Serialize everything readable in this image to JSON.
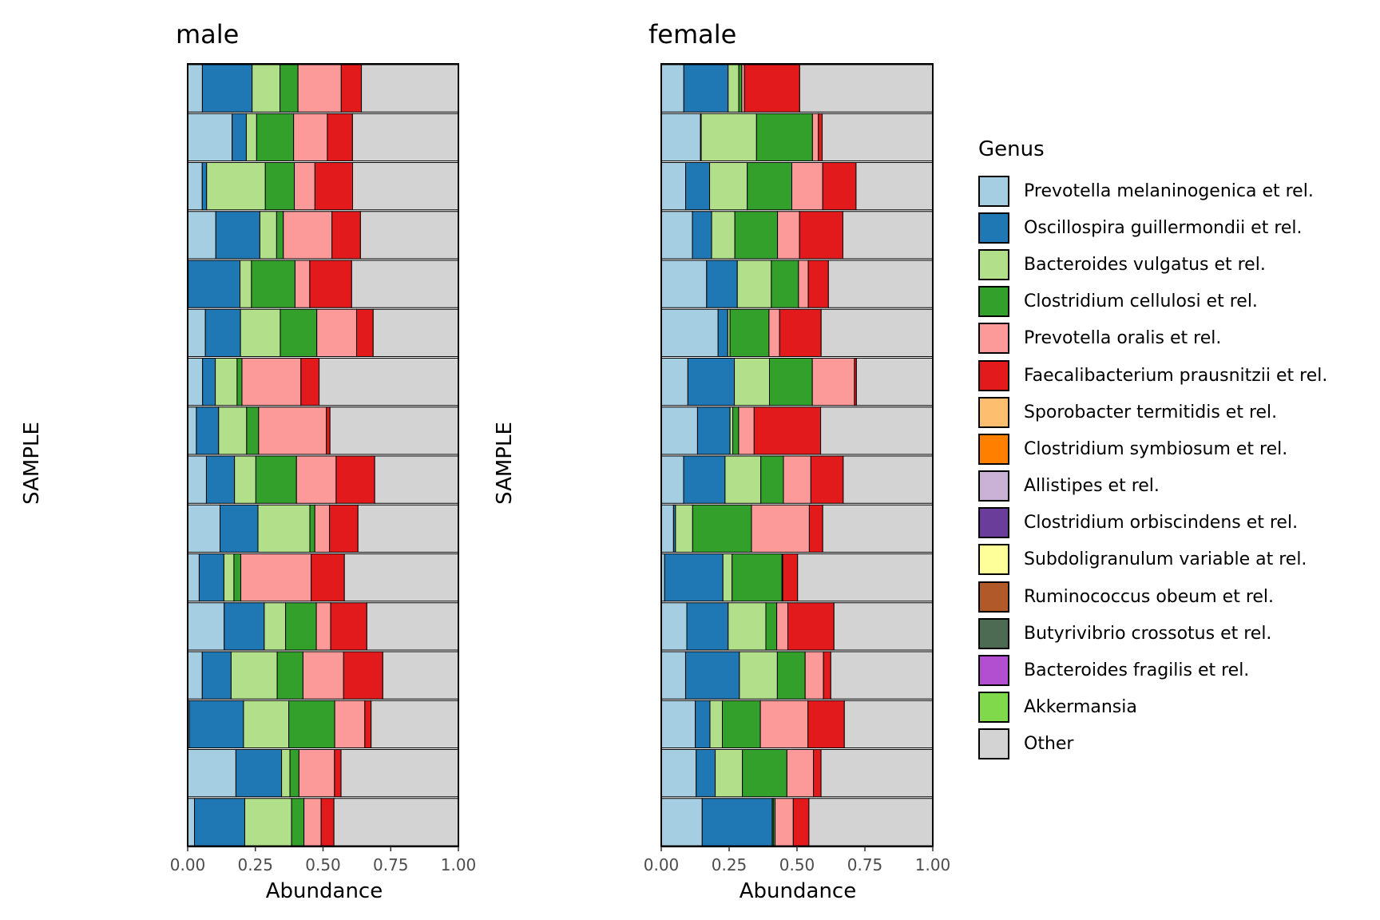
{
  "chart_data": {
    "type": "bar",
    "orientation": "horizontal",
    "stacked": true,
    "xlabel": "Abundance",
    "ylabel": "SAMPLE",
    "x_ticks": [
      "0.00",
      "0.25",
      "0.50",
      "0.75",
      "1.00"
    ],
    "xlim": [
      0,
      1
    ],
    "legend_title": "Genus",
    "legend_position": "right",
    "grid": false,
    "panels": [
      {
        "title": "male"
      },
      {
        "title": "female"
      }
    ],
    "series": [
      {
        "name": "Prevotella melaninogenica et rel.",
        "color": "#A6CEE3"
      },
      {
        "name": "Oscillospira guillermondii et rel.",
        "color": "#1F78B4"
      },
      {
        "name": "Bacteroides vulgatus et rel.",
        "color": "#B2DF8A"
      },
      {
        "name": "Clostridium cellulosi et rel.",
        "color": "#33A02C"
      },
      {
        "name": "Prevotella oralis et rel.",
        "color": "#FB9A99"
      },
      {
        "name": "Faecalibacterium prausnitzii et rel.",
        "color": "#E31A1C"
      },
      {
        "name": "Sporobacter termitidis et rel.",
        "color": "#FDBF6F"
      },
      {
        "name": "Clostridium symbiosum et rel.",
        "color": "#FF7F00"
      },
      {
        "name": "Allistipes et rel.",
        "color": "#CAB2D6"
      },
      {
        "name": "Clostridium orbiscindens et rel.",
        "color": "#6A3D9A"
      },
      {
        "name": "Subdoligranulum variable at rel.",
        "color": "#FFFF99"
      },
      {
        "name": "Ruminococcus obeum et rel.",
        "color": "#B15928"
      },
      {
        "name": "Butyrivibrio crossotus et rel.",
        "color": "#4D6B53"
      },
      {
        "name": "Bacteroides fragilis et rel.",
        "color": "#B24ED0"
      },
      {
        "name": "Akkermansia",
        "color": "#7FD94A"
      },
      {
        "name": "Other",
        "color": "#D3D3D3"
      }
    ]
  }
}
